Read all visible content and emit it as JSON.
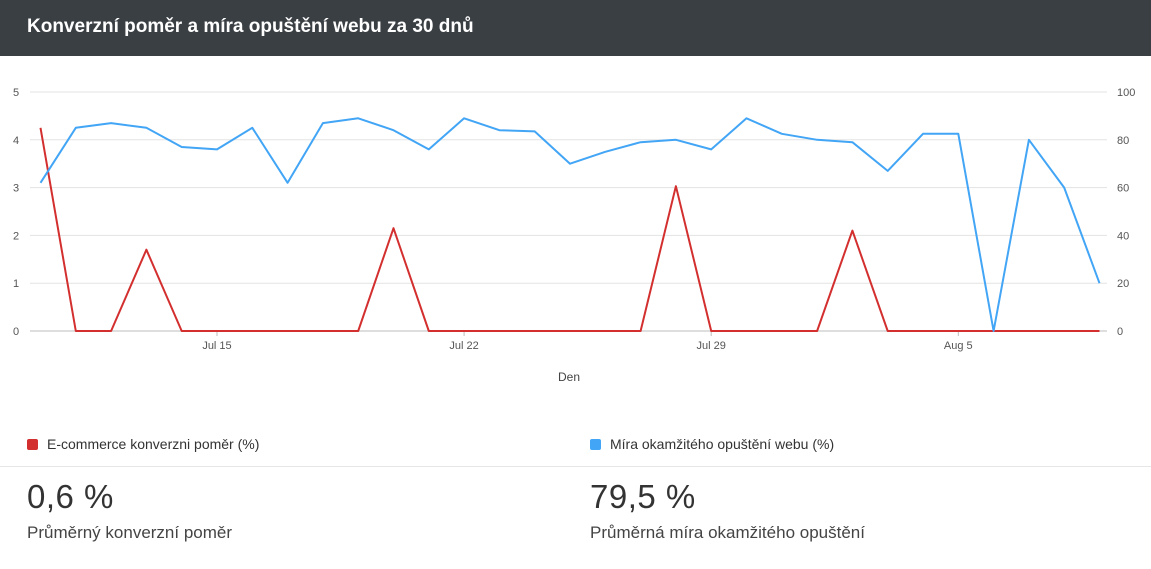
{
  "header": {
    "title": "Konverzní poměr a míra opuštění webu za 30 dnů"
  },
  "chart_data": {
    "type": "line",
    "xlabel": "Den",
    "x_tick_labels": [
      "Jul 15",
      "Jul 22",
      "Jul 29",
      "Aug 5"
    ],
    "x_tick_days": [
      5,
      12,
      19,
      26
    ],
    "y_left": {
      "ylim": [
        0,
        5
      ],
      "ticks": [
        "0",
        "1",
        "2",
        "3",
        "4",
        "5"
      ]
    },
    "y_right": {
      "ylim": [
        0,
        100
      ],
      "ticks": [
        "0",
        "20",
        "40",
        "60",
        "80",
        "100"
      ]
    },
    "grid": true,
    "legend_position": "bottom",
    "series": [
      {
        "name": "E-commerce konverzni poměr (%)",
        "axis": "left",
        "color": "#d32f2f",
        "values": [
          4.25,
          0,
          0,
          1.7,
          0,
          0,
          0,
          0,
          0,
          0,
          2.15,
          0,
          0,
          0,
          0,
          0,
          0,
          0,
          3.03,
          0,
          0,
          0,
          0,
          2.1,
          0,
          0,
          0,
          0,
          0,
          0,
          0
        ]
      },
      {
        "name": "Míra okamžitého opuštění webu (%)",
        "axis": "right",
        "color": "#42a5f5",
        "values": [
          62,
          85,
          87,
          85,
          77,
          76,
          85,
          62,
          87,
          89,
          84,
          76,
          89,
          84,
          83.5,
          70,
          75,
          79,
          80,
          76,
          89,
          82.5,
          80,
          79,
          67,
          82.5,
          82.5,
          0,
          80,
          60,
          20
        ]
      }
    ]
  },
  "kpis": [
    {
      "value": "0,6 %",
      "label": "Průměrný konverzní poměr"
    },
    {
      "value": "79,5 %",
      "label": "Průměrná míra okamžitého opuštění"
    }
  ]
}
